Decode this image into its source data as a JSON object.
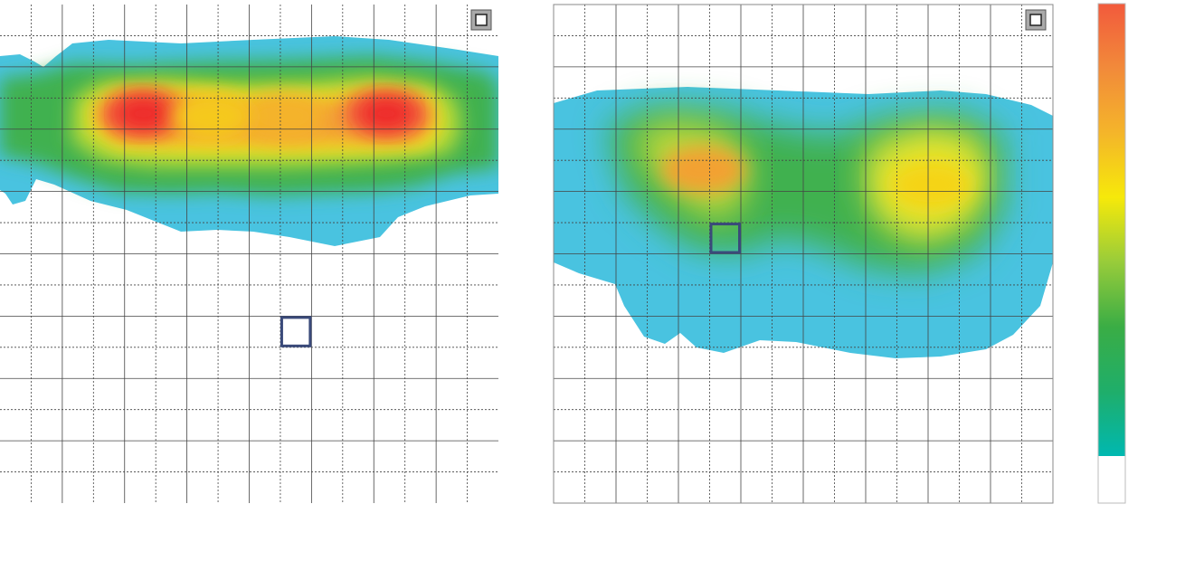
{
  "chart_data": [
    {
      "type": "heatmap",
      "title": "",
      "xlabel": "",
      "ylabel": "",
      "grid": true,
      "grid_columns": 16,
      "grid_rows": 16,
      "hotspots": [
        {
          "col": 4.6,
          "row": 3.5,
          "level": 0.98
        },
        {
          "col": 12.4,
          "row": 3.5,
          "level": 0.97
        },
        {
          "col": 9.1,
          "row": 3.6,
          "level": 0.72
        },
        {
          "col": 6.8,
          "row": 3.6,
          "level": 0.66
        }
      ],
      "selection_marker": {
        "col": 9,
        "row": 10
      },
      "corner_toggle": {
        "checked": false
      }
    },
    {
      "type": "heatmap",
      "title": "",
      "xlabel": "",
      "ylabel": "",
      "grid": true,
      "grid_columns": 16,
      "grid_rows": 16,
      "hotspots": [
        {
          "col": 4.8,
          "row": 5.3,
          "level": 0.78
        },
        {
          "col": 12.1,
          "row": 5.8,
          "level": 0.63
        }
      ],
      "selection_marker": {
        "col": 5,
        "row": 7
      },
      "corner_toggle": {
        "checked": false
      }
    }
  ],
  "colorbar": {
    "stops": [
      "#00b8b0",
      "#1fae6a",
      "#3aad45",
      "#98cc3a",
      "#f6e90a",
      "#f4b52a",
      "#f28a3a",
      "#f25a3c"
    ],
    "no_data_color": "#ffffff"
  },
  "colors": {
    "grid": "#444444",
    "frame": "#888888",
    "marker": "#3a4a7a",
    "outer_edge": "#49c3e0"
  }
}
